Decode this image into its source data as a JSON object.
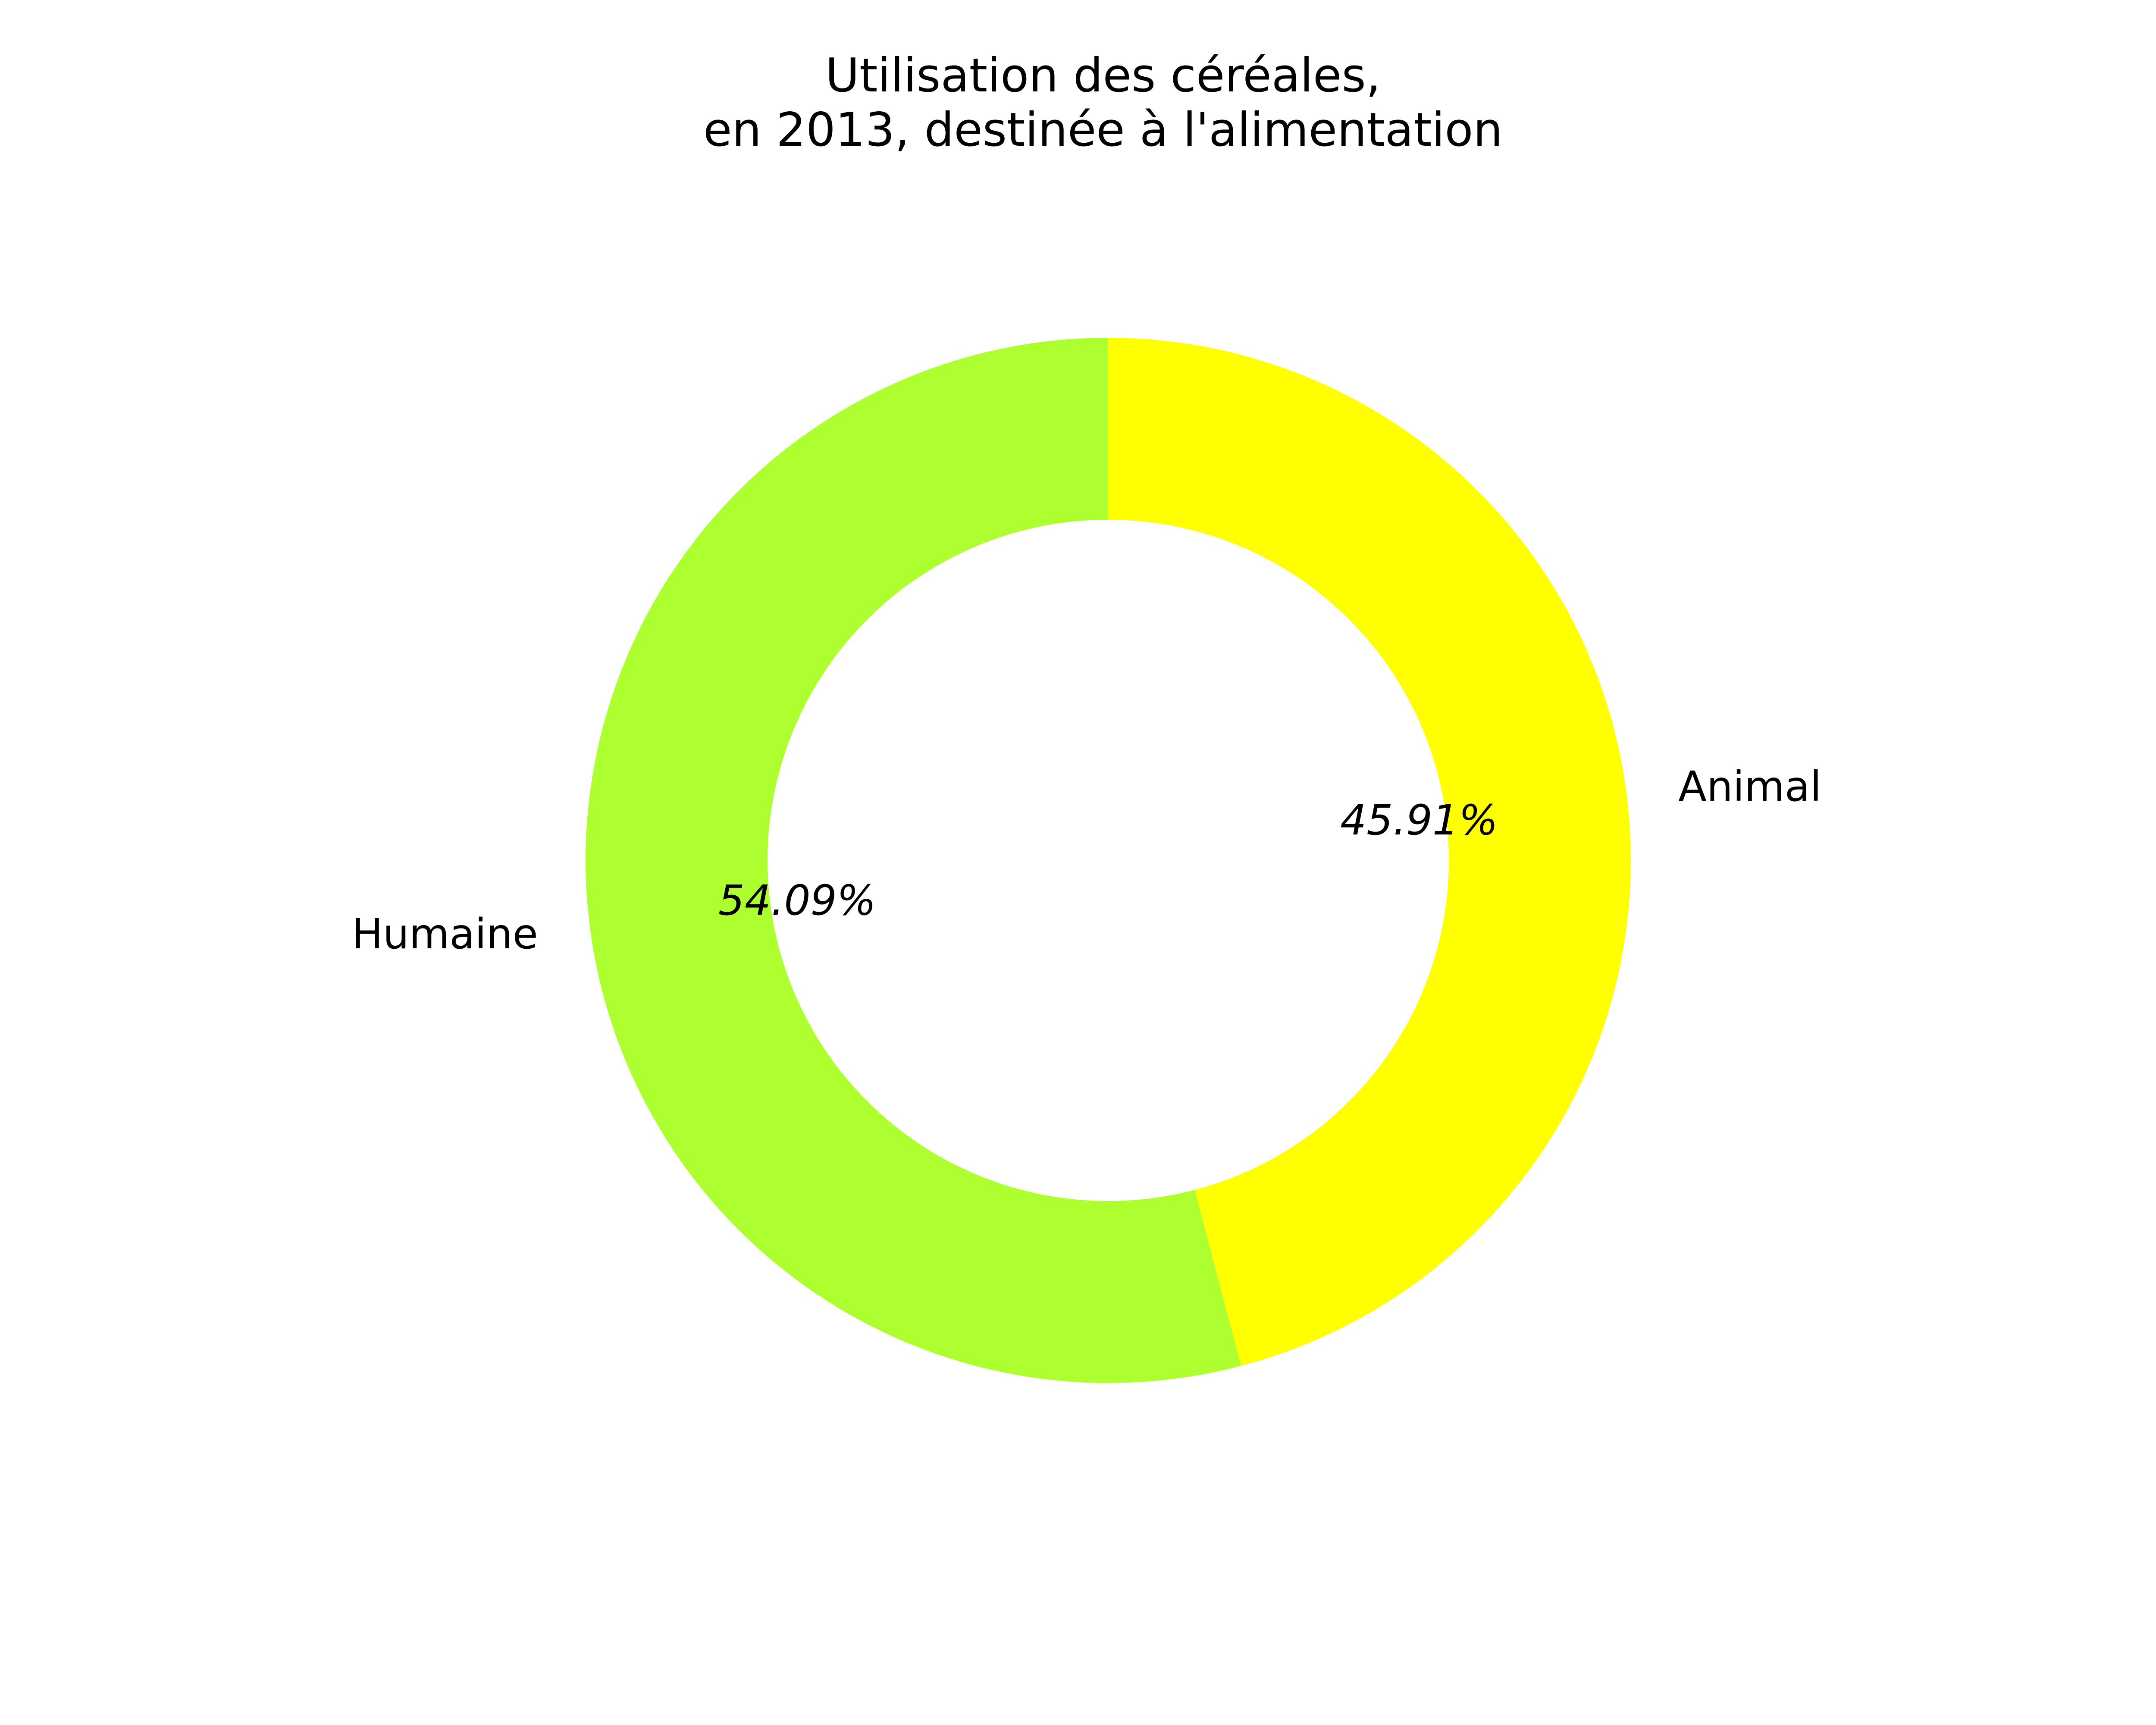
{
  "chart_data": {
    "type": "pie",
    "title": {
      "line1": "Utilisation des céréales,",
      "line2": "en 2013, destinée à l'alimentation"
    },
    "donut": true,
    "start_angle_deg": 90,
    "direction": "clockwise",
    "slices": [
      {
        "label": "Animal",
        "value": 45.91,
        "pct_label": "45.91%",
        "color": "#ffff00"
      },
      {
        "label": "Humaine",
        "value": 54.09,
        "pct_label": "54.09%",
        "color": "#adff2f"
      }
    ]
  }
}
